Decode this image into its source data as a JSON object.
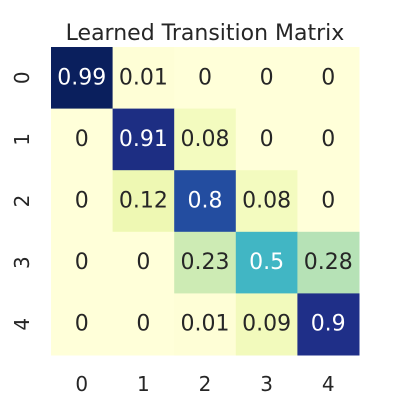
{
  "chart_data": {
    "type": "heatmap",
    "title": "Learned Transition Matrix",
    "xlabel": "",
    "ylabel": "",
    "x_categories": [
      "0",
      "1",
      "2",
      "3",
      "4"
    ],
    "y_categories": [
      "0",
      "1",
      "2",
      "3",
      "4"
    ],
    "values": [
      [
        0.99,
        0.01,
        0,
        0,
        0
      ],
      [
        0,
        0.91,
        0.08,
        0,
        0
      ],
      [
        0,
        0.12,
        0.8,
        0.08,
        0
      ],
      [
        0,
        0,
        0.23,
        0.5,
        0.28
      ],
      [
        0,
        0,
        0.01,
        0.09,
        0.9
      ]
    ],
    "value_range": [
      0,
      1
    ],
    "colormap": "YlGnBu",
    "annotated": true,
    "colorbar": false,
    "grid": false,
    "legend": "none"
  }
}
